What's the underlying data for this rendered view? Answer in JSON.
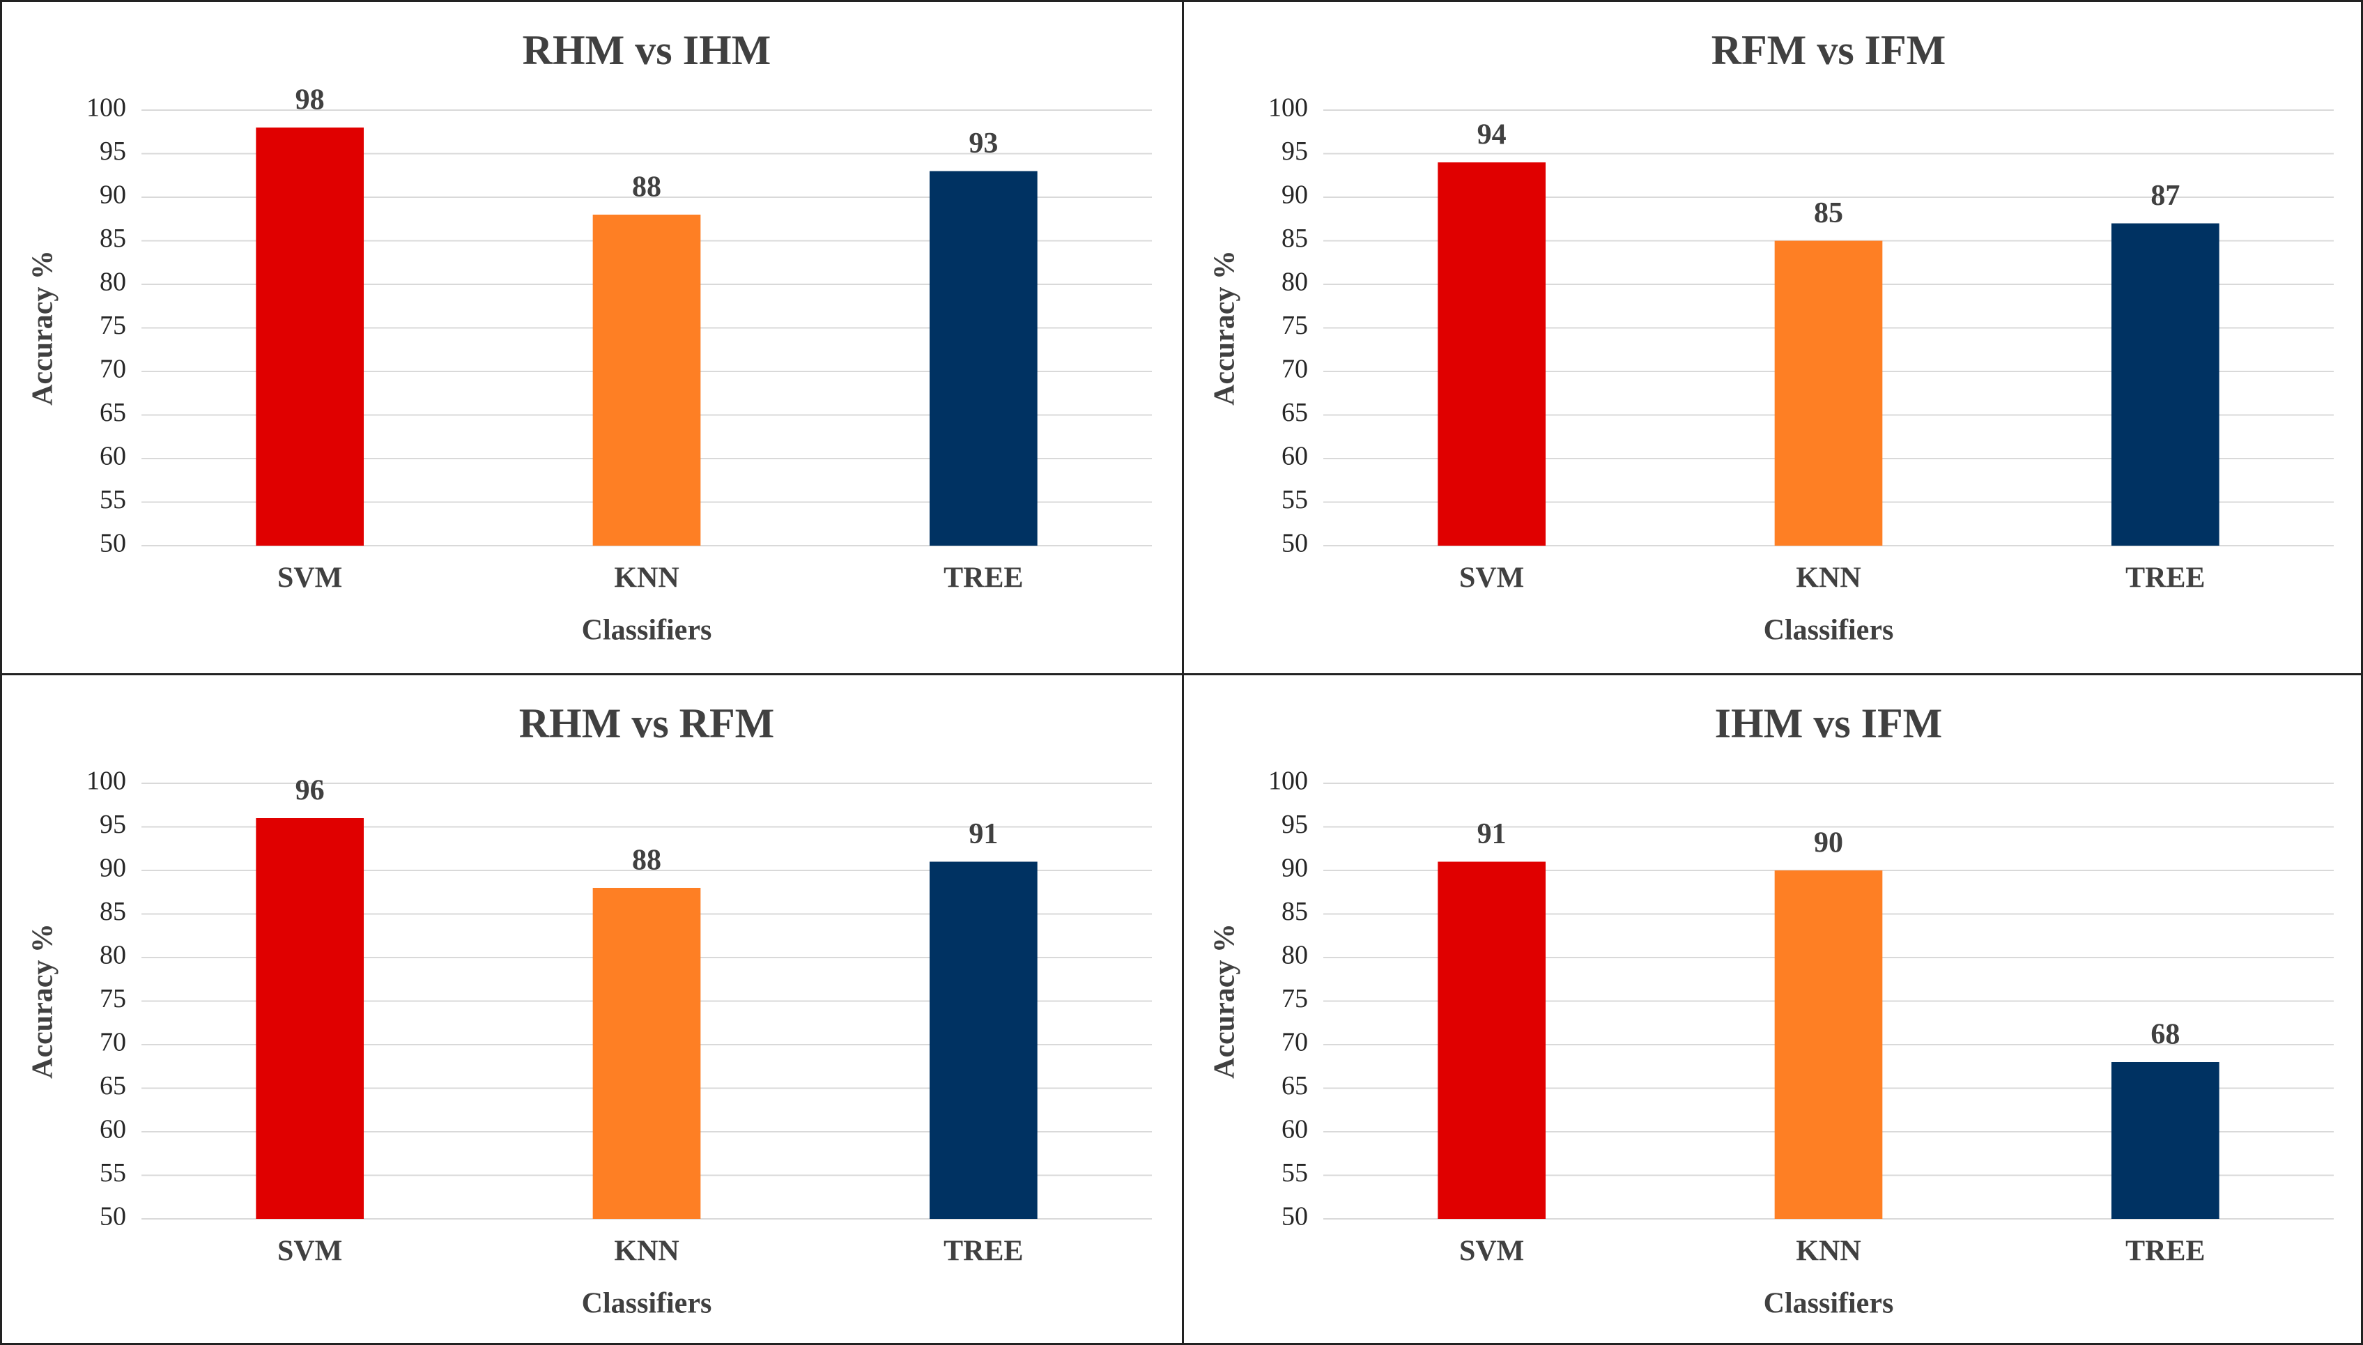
{
  "chart_data": [
    {
      "type": "bar",
      "title": "RHM vs IHM",
      "xlabel": "Classifiers",
      "ylabel": "Accuracy %",
      "categories": [
        "SVM",
        "KNN",
        "TREE"
      ],
      "values": [
        98,
        88,
        93
      ],
      "colors": [
        "#e00000",
        "#fe7f24",
        "#003262"
      ],
      "ylim": [
        50,
        100
      ],
      "yticks": [
        50,
        55,
        60,
        65,
        70,
        75,
        80,
        85,
        90,
        95,
        100
      ],
      "grid": true
    },
    {
      "type": "bar",
      "title": "RFM vs IFM",
      "xlabel": "Classifiers",
      "ylabel": "Accuracy %",
      "categories": [
        "SVM",
        "KNN",
        "TREE"
      ],
      "values": [
        94,
        85,
        87
      ],
      "colors": [
        "#e00000",
        "#fe7f24",
        "#003262"
      ],
      "ylim": [
        50,
        100
      ],
      "yticks": [
        50,
        55,
        60,
        65,
        70,
        75,
        80,
        85,
        90,
        95,
        100
      ],
      "grid": true
    },
    {
      "type": "bar",
      "title": "RHM vs RFM",
      "xlabel": "Classifiers",
      "ylabel": "Accuracy %",
      "categories": [
        "SVM",
        "KNN",
        "TREE"
      ],
      "values": [
        96,
        88,
        91
      ],
      "colors": [
        "#e00000",
        "#fe7f24",
        "#003262"
      ],
      "ylim": [
        50,
        100
      ],
      "yticks": [
        50,
        55,
        60,
        65,
        70,
        75,
        80,
        85,
        90,
        95,
        100
      ],
      "grid": true
    },
    {
      "type": "bar",
      "title": "IHM vs IFM",
      "xlabel": "Classifiers",
      "ylabel": "Accuracy %",
      "categories": [
        "SVM",
        "KNN",
        "TREE"
      ],
      "values": [
        91,
        90,
        68
      ],
      "colors": [
        "#e00000",
        "#fe7f24",
        "#003262"
      ],
      "ylim": [
        50,
        100
      ],
      "yticks": [
        50,
        55,
        60,
        65,
        70,
        75,
        80,
        85,
        90,
        95,
        100
      ],
      "grid": true
    }
  ]
}
